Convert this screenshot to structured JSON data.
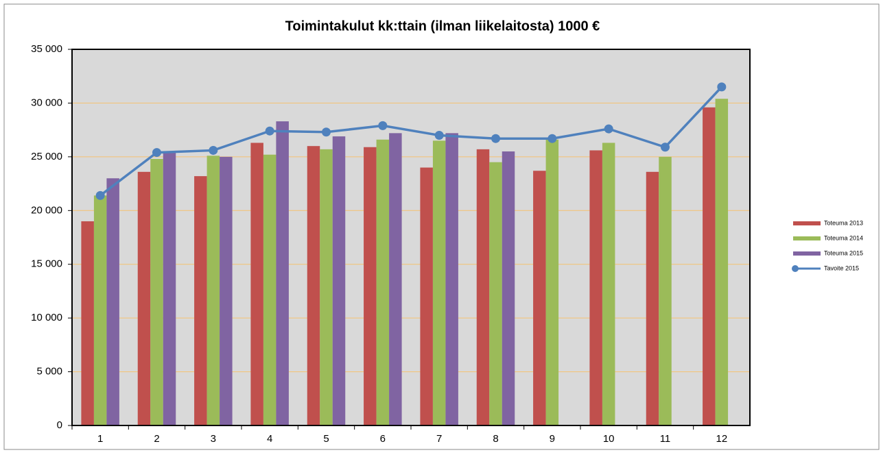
{
  "chart_data": {
    "type": "bar",
    "title": "Toimintakulut kk:ttain (ilman liikelaitosta) 1000 €",
    "categories": [
      "1",
      "2",
      "3",
      "4",
      "5",
      "6",
      "7",
      "8",
      "9",
      "10",
      "11",
      "12"
    ],
    "series": [
      {
        "name": "Toteuma 2013",
        "color": "#c0504d",
        "values": [
          19000,
          23600,
          23200,
          26300,
          26000,
          25900,
          24000,
          25700,
          23700,
          25600,
          23600,
          29600
        ]
      },
      {
        "name": "Toteuma 2014",
        "color": "#9bbb59",
        "values": [
          21400,
          24800,
          25100,
          25200,
          25700,
          26600,
          26500,
          24500,
          26600,
          26300,
          25000,
          30400
        ]
      },
      {
        "name": "Toteuma 2015",
        "color": "#8064a2",
        "values": [
          23000,
          25400,
          25000,
          28300,
          26900,
          27200,
          27200,
          25500,
          null,
          null,
          null,
          null
        ]
      },
      {
        "name": "Tavoite 2015",
        "color": "#4f81bd",
        "type": "line",
        "values": [
          21400,
          25400,
          25600,
          27400,
          27300,
          27900,
          27000,
          26700,
          26700,
          27600,
          25900,
          31500
        ]
      }
    ],
    "ylim": [
      0,
      35000
    ],
    "yticks": [
      0,
      {
        "value": 5000,
        "label": "5 000"
      },
      {
        "value": 10000,
        "label": "10 000"
      },
      {
        "value": 15000,
        "label": "15 000"
      },
      {
        "value": 20000,
        "label": "20 000"
      },
      {
        "value": 25000,
        "label": "25 000"
      },
      {
        "value": 30000,
        "label": "30 000"
      },
      {
        "value": 35000,
        "label": "35 000"
      }
    ],
    "grid": true,
    "legend": "right"
  }
}
